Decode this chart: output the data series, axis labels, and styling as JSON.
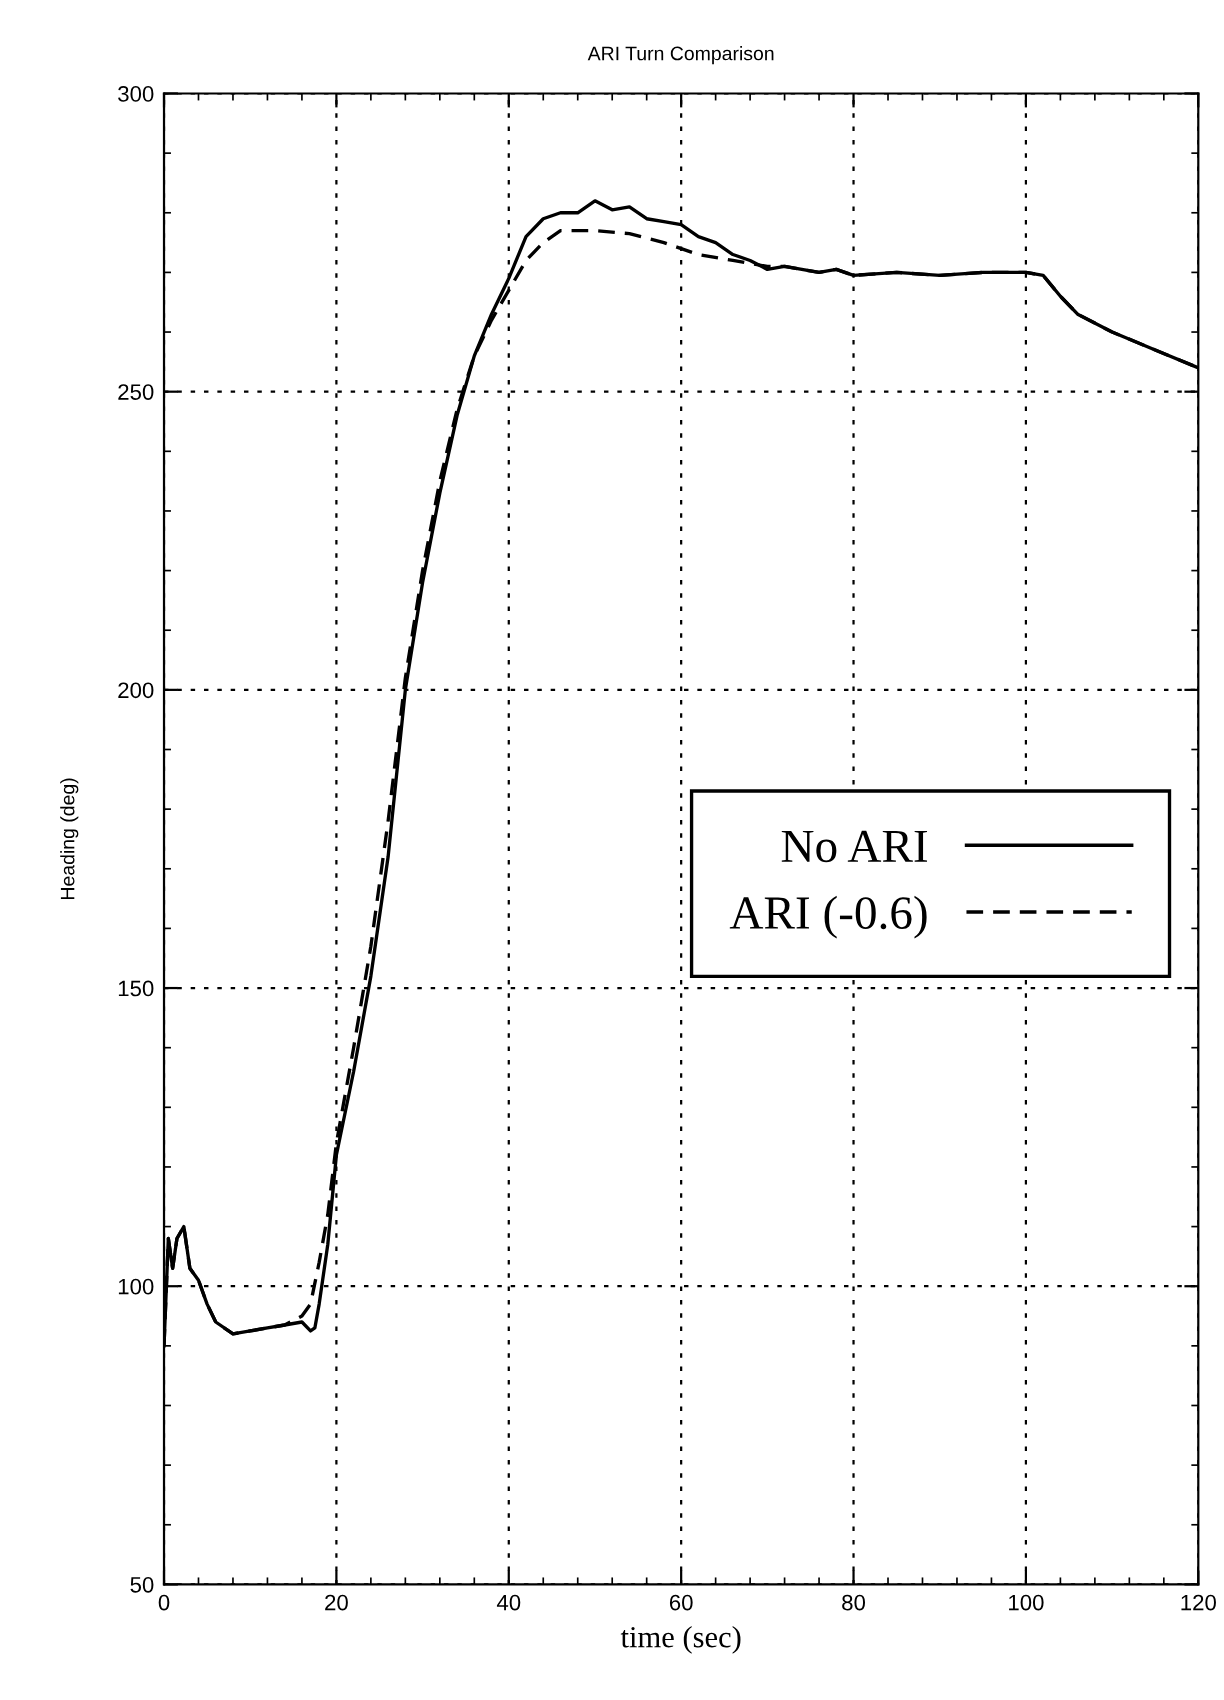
{
  "chart_data": {
    "type": "line",
    "title": "ARI Turn Comparison",
    "xlabel": "time (sec)",
    "ylabel": "Heading (deg)",
    "xlim": [
      0,
      120
    ],
    "xticks": [
      0,
      20,
      40,
      60,
      80,
      100,
      120
    ],
    "ylim": [
      50,
      300
    ],
    "yticks": [
      50,
      100,
      150,
      200,
      250,
      300
    ],
    "grid": true,
    "legend": "right",
    "marker": "none",
    "series": [
      {
        "name": "No ARI",
        "color": "#000000",
        "line_style": "solid",
        "x": [
          0,
          0.5,
          1,
          1.5,
          2.3,
          3,
          4,
          5,
          6,
          8,
          10,
          12,
          14,
          16,
          17,
          17.5,
          18,
          19,
          20,
          22,
          24,
          26,
          28,
          30,
          32,
          34,
          36,
          38,
          40,
          42,
          44,
          46,
          48,
          50,
          52,
          54,
          56,
          58,
          60,
          62,
          64,
          66,
          68,
          70,
          72,
          74,
          76,
          78,
          80,
          85,
          90,
          95,
          100,
          102,
          104,
          106,
          110,
          115,
          120
        ],
        "values": [
          90,
          108,
          103,
          108,
          110,
          103,
          101,
          97,
          94,
          92,
          92.5,
          93,
          93.5,
          94,
          92.5,
          93,
          97,
          107,
          122,
          136,
          152,
          172,
          200,
          218,
          233,
          246,
          256,
          263,
          269,
          276,
          279,
          280,
          280,
          282,
          280.5,
          281,
          279,
          278.5,
          278,
          276,
          275,
          273,
          272,
          270.5,
          271,
          270.5,
          270,
          270.5,
          269.5,
          270,
          269.5,
          270,
          270,
          269.5,
          266,
          263,
          260,
          257,
          254
        ]
      },
      {
        "name": "ARI (-0.6)",
        "color": "#000000",
        "line_style": "dashed",
        "x": [
          0,
          0.5,
          1,
          1.5,
          2.3,
          3,
          4,
          5,
          6,
          8,
          10,
          12,
          14,
          16,
          17,
          18,
          19,
          20,
          22,
          24,
          26,
          28,
          30,
          32,
          34,
          36,
          38,
          40,
          42,
          44,
          46,
          50,
          54,
          58,
          62,
          66,
          70,
          72,
          74,
          76,
          78,
          80,
          85,
          90,
          95,
          100,
          102,
          104,
          106,
          110,
          115,
          120
        ],
        "values": [
          90,
          108,
          103,
          108,
          110,
          103,
          101,
          97,
          94,
          92,
          92.5,
          93,
          93.5,
          95,
          97,
          104,
          112,
          124,
          140,
          157,
          178,
          202,
          220,
          235,
          247,
          256,
          262,
          267,
          272,
          275,
          277,
          277,
          276.5,
          275,
          273,
          272,
          271,
          271,
          270.5,
          270,
          270.5,
          269.5,
          270,
          269.5,
          270,
          270,
          269.5,
          266,
          263,
          260,
          257,
          254
        ]
      }
    ]
  }
}
